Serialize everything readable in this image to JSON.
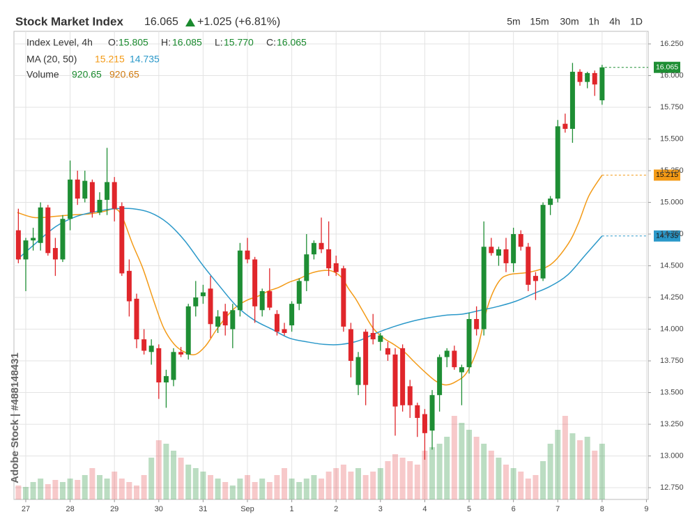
{
  "chart_data": {
    "type": "candlestick",
    "title": "Stock Market Index",
    "last": "16.065",
    "change": "+1.025 (+6.81%)",
    "timeframes": [
      "5m",
      "15m",
      "30m",
      "1h",
      "4h",
      "1D"
    ],
    "watermark": "Adobe Stock | #488148431",
    "legend": {
      "label": "Index Level, 4h",
      "fields": [
        {
          "key": "O:",
          "value": "15.805"
        },
        {
          "key": "H:",
          "value": "16.085"
        },
        {
          "key": "L:",
          "value": "15.770"
        },
        {
          "key": "C:",
          "value": "16.065"
        }
      ],
      "ma_label": "MA (20, 50)",
      "volume_label": "Volume",
      "volume_values": [
        "920.65",
        "920.65"
      ]
    },
    "up_color": "#1e8e34",
    "down_color": "#e0262b",
    "grid": true,
    "xlim": [
      -0.267,
      14.04
    ],
    "ylim": [
      12.657,
      16.349
    ],
    "vlim": [
      0,
      130
    ],
    "xticks": [
      {
        "value": 0,
        "label": "27"
      },
      {
        "value": 1,
        "label": "28"
      },
      {
        "value": 2,
        "label": "29"
      },
      {
        "value": 3,
        "label": "30"
      },
      {
        "value": 4,
        "label": "31"
      },
      {
        "value": 5,
        "label": "Sep"
      },
      {
        "value": 6,
        "label": "1"
      },
      {
        "value": 7,
        "label": "2"
      },
      {
        "value": 8,
        "label": "3"
      },
      {
        "value": 9,
        "label": "4"
      },
      {
        "value": 10,
        "label": "5"
      },
      {
        "value": 11,
        "label": "6"
      },
      {
        "value": 12,
        "label": "7"
      },
      {
        "value": 13,
        "label": "8"
      },
      {
        "value": 14,
        "label": "9"
      }
    ],
    "yticks": [
      {
        "value": 12.75,
        "label": "12.750"
      },
      {
        "value": 13,
        "label": "13.000"
      },
      {
        "value": 13.25,
        "label": "13.250"
      },
      {
        "value": 13.5,
        "label": "13.500"
      },
      {
        "value": 13.75,
        "label": "13.750"
      },
      {
        "value": 14,
        "label": "14.000"
      },
      {
        "value": 14.25,
        "label": "14.250"
      },
      {
        "value": 14.5,
        "label": "14.500"
      },
      {
        "value": 14.75,
        "label": "14.750"
      },
      {
        "value": 15,
        "label": "15.000"
      },
      {
        "value": 15.25,
        "label": "15.250"
      },
      {
        "value": 15.5,
        "label": "15.500"
      },
      {
        "value": 15.75,
        "label": "15.750"
      },
      {
        "value": 16,
        "label": "16.000"
      },
      {
        "value": 16.25,
        "label": "16.250"
      }
    ],
    "x": [
      -0.167,
      0,
      0.167,
      0.333,
      0.5,
      0.667,
      0.833,
      1,
      1.167,
      1.333,
      1.5,
      1.667,
      1.833,
      2,
      2.167,
      2.333,
      2.5,
      2.667,
      2.833,
      3,
      3.167,
      3.333,
      3.5,
      3.667,
      3.833,
      4,
      4.167,
      4.333,
      4.5,
      4.667,
      4.833,
      5,
      5.167,
      5.333,
      5.5,
      5.667,
      5.833,
      6,
      6.167,
      6.333,
      6.5,
      6.667,
      6.833,
      7,
      7.167,
      7.333,
      7.5,
      7.667,
      7.833,
      8,
      8.167,
      8.333,
      8.5,
      8.667,
      8.833,
      9,
      9.167,
      9.333,
      9.5,
      9.667,
      9.833,
      10,
      10.167,
      10.333,
      10.5,
      10.667,
      10.833,
      11,
      11.167,
      11.333,
      11.5,
      11.667,
      11.833,
      12,
      12.167,
      12.333,
      12.5,
      12.667,
      12.833,
      13
    ],
    "open": [
      14.78,
      14.55,
      14.7,
      14.68,
      14.96,
      14.64,
      14.55,
      14.87,
      15.18,
      15.03,
      15.16,
      14.92,
      15.02,
      15.16,
      14.97,
      14.46,
      14.24,
      13.92,
      13.82,
      13.85,
      13.58,
      13.6,
      13.82,
      13.8,
      14.18,
      14.26,
      14.32,
      14.02,
      14.14,
      14.0,
      14.15,
      14.62,
      14.55,
      14.15,
      14.3,
      14.12,
      14.0,
      14.03,
      14.2,
      14.38,
      14.59,
      14.68,
      14.63,
      14.52,
      14.48,
      14.0,
      13.56,
      13.98,
      13.97,
      13.9,
      13.85,
      13.8,
      13.85,
      13.55,
      13.4,
      13.33,
      13.2,
      13.48,
      13.78,
      13.83,
      13.66,
      13.7,
      14.08,
      14.0,
      14.65,
      14.58,
      14.63,
      14.52,
      14.75,
      14.65,
      14.42,
      14.4,
      14.98,
      15.03,
      15.62,
      15.58,
      16.03,
      15.95,
      16.02,
      15.805
    ],
    "high": [
      14.95,
      14.72,
      14.8,
      15.0,
      14.98,
      14.72,
      14.9,
      15.33,
      15.25,
      15.25,
      15.18,
      15.08,
      15.43,
      15.2,
      15.0,
      14.55,
      14.28,
      14.0,
      13.92,
      13.88,
      13.68,
      13.85,
      13.86,
      14.2,
      14.38,
      14.35,
      14.42,
      14.15,
      14.2,
      14.2,
      14.68,
      14.72,
      14.57,
      14.32,
      14.48,
      14.15,
      14.05,
      14.22,
      14.4,
      14.75,
      14.7,
      14.88,
      14.85,
      14.58,
      14.5,
      14.05,
      13.82,
      14.0,
      14.12,
      13.97,
      13.9,
      13.85,
      13.88,
      13.6,
      13.42,
      13.37,
      13.52,
      13.8,
      13.85,
      13.87,
      13.72,
      14.13,
      14.18,
      14.85,
      14.72,
      14.65,
      14.72,
      14.8,
      14.78,
      14.68,
      14.45,
      15.0,
      15.05,
      15.65,
      15.7,
      16.1,
      16.05,
      16.03,
      16.04,
      16.085
    ],
    "low": [
      14.52,
      14.3,
      14.62,
      14.62,
      14.58,
      14.42,
      14.53,
      14.78,
      14.98,
      15.0,
      14.88,
      14.9,
      14.9,
      14.85,
      14.42,
      14.1,
      13.85,
      13.8,
      13.72,
      13.45,
      13.38,
      13.55,
      13.78,
      13.76,
      14.1,
      14.2,
      13.93,
      13.97,
      13.95,
      13.85,
      14.1,
      14.52,
      14.05,
      14.1,
      14.15,
      13.95,
      13.95,
      13.98,
      14.15,
      14.3,
      14.55,
      14.6,
      14.42,
      14.42,
      13.98,
      13.62,
      13.48,
      13.4,
      13.88,
      13.83,
      13.75,
      13.16,
      13.35,
      13.3,
      13.15,
      12.97,
      13.05,
      13.35,
      13.7,
      13.68,
      13.4,
      13.65,
      13.95,
      13.95,
      14.58,
      14.5,
      14.45,
      14.45,
      14.62,
      14.3,
      14.23,
      14.38,
      14.9,
      15.0,
      15.55,
      15.47,
      15.92,
      15.9,
      15.84,
      15.77
    ],
    "close": [
      14.55,
      14.7,
      14.72,
      14.96,
      14.6,
      14.55,
      14.87,
      15.18,
      15.03,
      15.17,
      14.92,
      15.02,
      15.16,
      14.95,
      14.44,
      14.22,
      13.92,
      13.83,
      13.87,
      13.58,
      13.63,
      13.82,
      13.8,
      14.18,
      14.25,
      14.29,
      14.04,
      14.1,
      14.03,
      14.15,
      14.62,
      14.55,
      14.18,
      14.3,
      14.17,
      13.98,
      13.97,
      14.2,
      14.38,
      14.59,
      14.68,
      14.63,
      14.48,
      14.45,
      14.02,
      13.75,
      13.78,
      13.56,
      13.92,
      13.95,
      13.8,
      13.39,
      13.4,
      13.4,
      13.3,
      13.18,
      13.48,
      13.78,
      13.83,
      13.7,
      13.7,
      14.08,
      14.0,
      14.65,
      14.6,
      14.63,
      14.52,
      14.75,
      14.65,
      14.35,
      14.38,
      14.98,
      15.03,
      15.6,
      15.58,
      16.03,
      15.95,
      16.02,
      15.93,
      16.065
    ],
    "volume": [
      20,
      18,
      25,
      30,
      22,
      28,
      25,
      30,
      28,
      35,
      45,
      35,
      30,
      40,
      30,
      25,
      20,
      35,
      60,
      85,
      80,
      70,
      60,
      50,
      45,
      40,
      35,
      30,
      25,
      20,
      30,
      35,
      25,
      30,
      25,
      35,
      45,
      30,
      25,
      30,
      35,
      30,
      40,
      45,
      50,
      40,
      45,
      35,
      40,
      45,
      55,
      65,
      60,
      55,
      50,
      70,
      75,
      80,
      90,
      120,
      110,
      100,
      90,
      80,
      70,
      60,
      50,
      45,
      40,
      30,
      35,
      55,
      80,
      100,
      120,
      95,
      85,
      90,
      70,
      80
    ],
    "ma": [
      {
        "color": "#f39a16",
        "x": [
          -0.19,
          0.2,
          0.68,
          0.99,
          1.46,
          1.78,
          2.01,
          2.17,
          2.41,
          2.64,
          2.88,
          3.11,
          3.35,
          3.58,
          3.82,
          4.06,
          4.29,
          4.53,
          4.76,
          5.0,
          5.24,
          5.47,
          5.71,
          5.94,
          6.18,
          6.42,
          6.65,
          6.89,
          7.12,
          7.28,
          7.44,
          7.59,
          7.83,
          8.07,
          8.3,
          8.54,
          8.77,
          9.01,
          9.25,
          9.48,
          9.72,
          9.95,
          10.19,
          10.42,
          10.66,
          10.9,
          11.37,
          11.84,
          12.23,
          12.47,
          12.7,
          13.0
        ],
        "values": [
          14.92,
          14.88,
          14.89,
          14.9,
          14.91,
          14.93,
          14.95,
          14.89,
          14.67,
          14.48,
          14.23,
          14.01,
          13.88,
          13.82,
          13.8,
          13.87,
          13.99,
          14.1,
          14.18,
          14.23,
          14.26,
          14.3,
          14.33,
          14.37,
          14.4,
          14.44,
          14.46,
          14.46,
          14.41,
          14.32,
          14.24,
          14.15,
          14.01,
          13.93,
          13.88,
          13.82,
          13.74,
          13.66,
          13.59,
          13.56,
          13.59,
          13.66,
          13.85,
          14.18,
          14.37,
          14.43,
          14.45,
          14.51,
          14.67,
          14.84,
          15.05,
          15.215
        ]
      },
      {
        "color": "#2a98c9",
        "x": [
          -0.19,
          0.2,
          0.68,
          1.15,
          1.62,
          2.01,
          2.41,
          2.8,
          3.19,
          3.58,
          3.98,
          4.37,
          4.76,
          5.16,
          5.55,
          5.94,
          6.34,
          6.73,
          7.12,
          7.52,
          7.91,
          8.3,
          8.69,
          9.09,
          9.48,
          9.87,
          10.27,
          10.66,
          11.05,
          11.45,
          11.84,
          12.23,
          12.61,
          13.0
        ],
        "values": [
          14.55,
          14.67,
          14.81,
          14.89,
          14.93,
          14.95,
          14.95,
          14.92,
          14.84,
          14.7,
          14.51,
          14.34,
          14.18,
          14.07,
          14.0,
          13.93,
          13.9,
          13.88,
          13.88,
          13.91,
          13.97,
          14.02,
          14.06,
          14.09,
          14.11,
          14.12,
          14.15,
          14.18,
          14.22,
          14.28,
          14.34,
          14.43,
          14.58,
          14.735
        ]
      }
    ]
  }
}
